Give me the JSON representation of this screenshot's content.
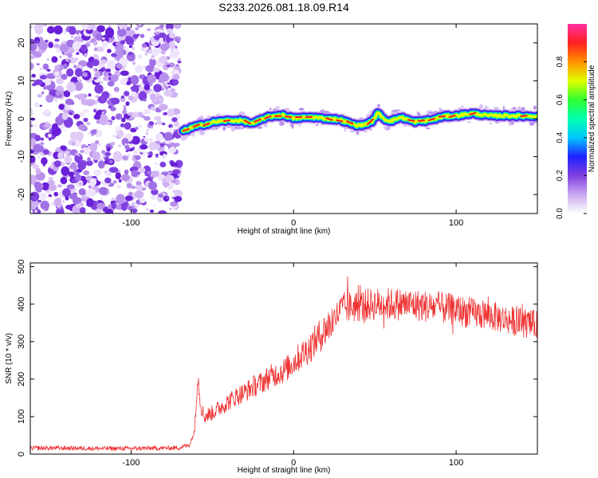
{
  "title": "S233.2026.081.18.09.R14",
  "chart_data": [
    {
      "type": "heatmap",
      "title": "",
      "xlabel": "Height of straight line (km)",
      "ylabel": "Frequency (Hz)",
      "xlim": [
        -162,
        150
      ],
      "ylim": [
        -25,
        25
      ],
      "xticks": [
        -100,
        0,
        100
      ],
      "xtick_labels": [
        "-100",
        "0",
        "100"
      ],
      "yticks": [
        -20,
        -10,
        0,
        10,
        20
      ],
      "ytick_labels": [
        "-20",
        "-10",
        "0",
        "10",
        "20"
      ],
      "noise_region_x": [
        -162,
        -70
      ],
      "ridge": {
        "x": [
          -68,
          -62,
          -55,
          -48,
          -40,
          -32,
          -25,
          -18,
          -12,
          -6,
          0,
          6,
          12,
          20,
          28,
          36,
          40,
          44,
          48,
          52,
          56,
          60,
          66,
          74,
          80,
          86,
          92,
          100,
          110,
          120,
          130,
          140,
          150
        ],
        "y": [
          -3.3,
          -2.2,
          -1.5,
          -0.8,
          -0.5,
          -0.5,
          -1.3,
          0.2,
          0.8,
          0.9,
          0.1,
          0.3,
          0.4,
          0.0,
          -0.2,
          -1.4,
          -1.8,
          -1.5,
          -0.8,
          1.5,
          -0.2,
          -0.6,
          0.4,
          -0.8,
          -0.6,
          -0.2,
          0.6,
          0.8,
          1.4,
          0.8,
          0.8,
          0.7,
          0.7
        ]
      },
      "colorbar": {
        "label": "Normalized spectral amplitude",
        "range": [
          0.0,
          1.0
        ],
        "ticks": [
          "0.0",
          "0.2",
          "0.4",
          "0.6",
          "0.8"
        ],
        "colors": [
          "#ffffff",
          "#c8a8f0",
          "#8040e0",
          "#2020ff",
          "#00c8ff",
          "#00ffb0",
          "#30ff30",
          "#e0ff00",
          "#ff9000",
          "#ff2020",
          "#ff30a0"
        ]
      }
    },
    {
      "type": "line",
      "title": "",
      "xlabel": "Height of straight line (km)",
      "ylabel": "SNR (10 * v/v)",
      "xlim": [
        -162,
        150
      ],
      "ylim": [
        0,
        510
      ],
      "xticks": [
        -100,
        0,
        100
      ],
      "xtick_labels": [
        "-100",
        "0",
        "100"
      ],
      "yticks": [
        0,
        100,
        200,
        300,
        400,
        500
      ],
      "ytick_labels": [
        "0",
        "100",
        "200",
        "300",
        "400",
        "500"
      ],
      "series": [
        {
          "color": "#ee3333",
          "x": [
            -162,
            -140,
            -120,
            -100,
            -80,
            -70,
            -64,
            -61,
            -60,
            -59,
            -57,
            -55,
            -50,
            -45,
            -40,
            -35,
            -30,
            -25,
            -20,
            -15,
            -10,
            -5,
            0,
            5,
            10,
            15,
            20,
            25,
            30,
            40,
            50,
            60,
            70,
            80,
            90,
            100,
            110,
            120,
            130,
            140,
            150
          ],
          "y": [
            16,
            16,
            15,
            15,
            16,
            17,
            25,
            60,
            140,
            210,
            130,
            100,
            110,
            125,
            140,
            155,
            165,
            180,
            190,
            205,
            215,
            225,
            245,
            265,
            285,
            310,
            335,
            360,
            390,
            395,
            400,
            400,
            400,
            395,
            390,
            385,
            375,
            370,
            360,
            350,
            345
          ]
        }
      ]
    }
  ]
}
